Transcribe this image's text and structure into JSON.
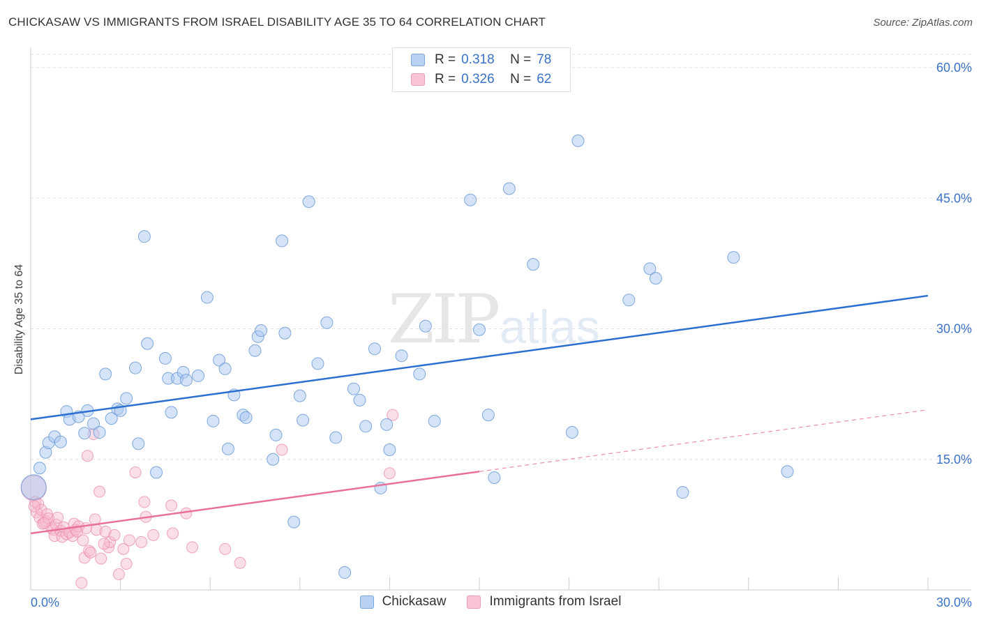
{
  "header": {
    "title": "CHICKASAW VS IMMIGRANTS FROM ISRAEL DISABILITY AGE 35 TO 64 CORRELATION CHART",
    "source": "Source: ZipAtlas.com"
  },
  "watermark": {
    "zip": "ZIP",
    "atlas": "atlas"
  },
  "legend_top": {
    "rows": [
      {
        "r_label": "R =",
        "r_value": "0.318",
        "n_label": "N =",
        "n_value": "78"
      },
      {
        "r_label": "R =",
        "r_value": "0.326",
        "n_label": "N =",
        "n_value": "62"
      }
    ]
  },
  "legend_bottom": {
    "items": [
      "Chickasaw",
      "Immigrants from Israel"
    ]
  },
  "colors": {
    "blue_fill": "#a9c8f0",
    "blue_stroke": "#6a9ad8",
    "blue_line": "#2a6fd0",
    "pink_fill": "#f7b8cb",
    "pink_stroke": "#ec8fac",
    "pink_line": "#e8709a",
    "tick_label": "#3a72c8",
    "grid": "#e0e0e0"
  },
  "chart_data": {
    "type": "scatter",
    "title": "CHICKASAW VS IMMIGRANTS FROM ISRAEL DISABILITY AGE 35 TO 64 CORRELATION CHART",
    "xlabel": "",
    "ylabel": "Disability Age 35 to 64",
    "xlim": [
      0,
      30
    ],
    "ylim": [
      0,
      60
    ],
    "x_tick_labels": [
      "0.0%",
      "30.0%"
    ],
    "y_ticks": [
      15,
      30,
      45,
      60
    ],
    "y_tick_labels": [
      "15.0%",
      "30.0%",
      "45.0%",
      "60.0%"
    ],
    "grid": true,
    "series": [
      {
        "name": "Chickasaw",
        "r": 0.318,
        "n": 78,
        "trend": {
          "x": [
            0,
            30
          ],
          "y": [
            19.6,
            33.8
          ]
        },
        "points": [
          [
            0.1,
            11.8
          ],
          [
            0.3,
            14.0
          ],
          [
            0.5,
            15.8
          ],
          [
            0.6,
            16.9
          ],
          [
            0.8,
            17.6
          ],
          [
            1.0,
            17.0
          ],
          [
            1.2,
            20.5
          ],
          [
            1.3,
            19.6
          ],
          [
            1.6,
            19.9
          ],
          [
            1.8,
            18.0
          ],
          [
            1.9,
            20.6
          ],
          [
            2.1,
            19.1
          ],
          [
            2.3,
            18.1
          ],
          [
            2.5,
            24.8
          ],
          [
            2.7,
            19.7
          ],
          [
            2.9,
            20.8
          ],
          [
            3.0,
            20.6
          ],
          [
            3.2,
            22.0
          ],
          [
            3.5,
            25.5
          ],
          [
            3.6,
            16.8
          ],
          [
            3.8,
            40.6
          ],
          [
            3.9,
            28.3
          ],
          [
            4.2,
            13.5
          ],
          [
            4.5,
            26.6
          ],
          [
            4.6,
            24.3
          ],
          [
            4.7,
            20.4
          ],
          [
            4.9,
            24.3
          ],
          [
            5.1,
            25.0
          ],
          [
            5.2,
            24.1
          ],
          [
            5.6,
            24.6
          ],
          [
            5.9,
            33.6
          ],
          [
            6.1,
            19.4
          ],
          [
            6.3,
            26.4
          ],
          [
            6.5,
            25.4
          ],
          [
            6.6,
            16.2
          ],
          [
            6.8,
            22.4
          ],
          [
            7.1,
            20.1
          ],
          [
            7.2,
            19.8
          ],
          [
            7.5,
            27.5
          ],
          [
            7.6,
            29.1
          ],
          [
            7.7,
            29.8
          ],
          [
            8.1,
            15.0
          ],
          [
            8.2,
            17.8
          ],
          [
            8.4,
            40.1
          ],
          [
            8.5,
            29.5
          ],
          [
            8.8,
            7.8
          ],
          [
            9.0,
            22.3
          ],
          [
            9.1,
            19.5
          ],
          [
            9.3,
            44.6
          ],
          [
            9.6,
            26.0
          ],
          [
            9.9,
            30.7
          ],
          [
            10.2,
            17.5
          ],
          [
            10.5,
            2.0
          ],
          [
            10.8,
            23.1
          ],
          [
            11.0,
            21.8
          ],
          [
            11.2,
            18.8
          ],
          [
            11.5,
            27.7
          ],
          [
            11.7,
            11.7
          ],
          [
            11.9,
            19.0
          ],
          [
            12.0,
            16.1
          ],
          [
            12.4,
            26.9
          ],
          [
            13.0,
            24.8
          ],
          [
            13.2,
            30.3
          ],
          [
            13.5,
            19.4
          ],
          [
            14.7,
            44.8
          ],
          [
            15.0,
            29.9
          ],
          [
            15.3,
            20.1
          ],
          [
            15.5,
            12.9
          ],
          [
            16.0,
            46.1
          ],
          [
            16.8,
            37.4
          ],
          [
            18.1,
            18.1
          ],
          [
            18.3,
            51.6
          ],
          [
            20.0,
            33.3
          ],
          [
            20.7,
            36.9
          ],
          [
            20.9,
            35.8
          ],
          [
            21.8,
            11.2
          ],
          [
            23.5,
            38.2
          ],
          [
            25.3,
            13.6
          ]
        ]
      },
      {
        "name": "Immigrants from Israel",
        "r": 0.326,
        "n": 62,
        "trend": {
          "x": [
            0,
            15
          ],
          "y": [
            6.5,
            13.6
          ]
        },
        "trend_extension": {
          "x": [
            15,
            30
          ],
          "y": [
            13.6,
            20.7
          ]
        },
        "points": [
          [
            0.1,
            11.7
          ],
          [
            0.15,
            10.1
          ],
          [
            0.2,
            8.9
          ],
          [
            0.25,
            9.9
          ],
          [
            0.3,
            8.3
          ],
          [
            0.35,
            9.2
          ],
          [
            0.4,
            7.6
          ],
          [
            0.5,
            7.9
          ],
          [
            0.55,
            8.7
          ],
          [
            0.6,
            8.2
          ],
          [
            0.7,
            7.1
          ],
          [
            0.75,
            6.9
          ],
          [
            0.8,
            6.2
          ],
          [
            0.85,
            7.5
          ],
          [
            0.9,
            8.3
          ],
          [
            1.0,
            6.8
          ],
          [
            1.05,
            6.1
          ],
          [
            1.1,
            7.2
          ],
          [
            1.2,
            6.4
          ],
          [
            1.3,
            6.6
          ],
          [
            1.4,
            6.2
          ],
          [
            1.45,
            7.6
          ],
          [
            1.5,
            6.9
          ],
          [
            1.6,
            7.3
          ],
          [
            1.7,
            0.8
          ],
          [
            1.75,
            5.7
          ],
          [
            1.8,
            3.7
          ],
          [
            1.85,
            7.1
          ],
          [
            1.9,
            15.4
          ],
          [
            1.95,
            4.5
          ],
          [
            2.0,
            4.3
          ],
          [
            2.1,
            17.9
          ],
          [
            2.15,
            8.1
          ],
          [
            2.2,
            6.9
          ],
          [
            2.3,
            11.3
          ],
          [
            2.35,
            3.6
          ],
          [
            2.5,
            6.7
          ],
          [
            2.6,
            4.9
          ],
          [
            2.65,
            5.5
          ],
          [
            2.8,
            6.3
          ],
          [
            2.95,
            1.8
          ],
          [
            3.1,
            4.7
          ],
          [
            3.2,
            3.0
          ],
          [
            3.3,
            5.7
          ],
          [
            3.5,
            13.5
          ],
          [
            3.7,
            5.5
          ],
          [
            3.8,
            10.1
          ],
          [
            3.85,
            8.4
          ],
          [
            4.1,
            6.3
          ],
          [
            4.7,
            9.7
          ],
          [
            4.75,
            6.5
          ],
          [
            5.2,
            8.8
          ],
          [
            5.4,
            4.9
          ],
          [
            6.5,
            4.7
          ],
          [
            7.0,
            3.1
          ],
          [
            8.4,
            16.1
          ],
          [
            12.0,
            13.4
          ],
          [
            12.1,
            20.1
          ],
          [
            0.12,
            9.6
          ],
          [
            0.45,
            7.7
          ],
          [
            1.55,
            6.7
          ],
          [
            2.45,
            5.3
          ]
        ]
      }
    ]
  }
}
